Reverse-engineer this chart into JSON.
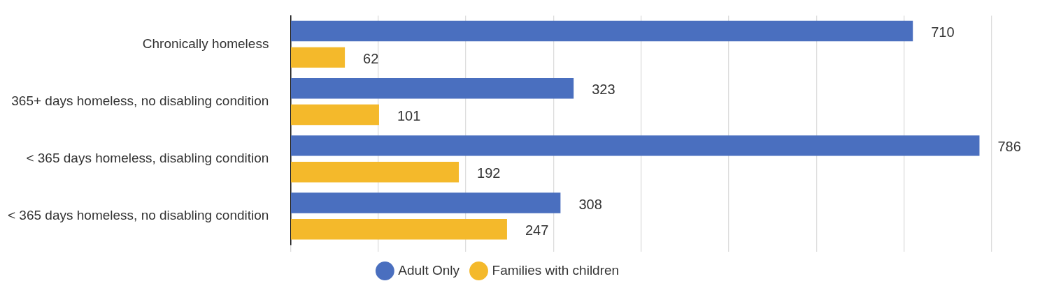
{
  "chart_data": {
    "type": "bar",
    "orientation": "horizontal",
    "categories": [
      "Chronically homeless",
      "365+ days homeless, no disabling condition",
      "< 365 days homeless, disabling condition",
      "< 365 days homeless, no disabling condition"
    ],
    "series": [
      {
        "name": "Adult Only",
        "color": "#4a6fbf",
        "values": [
          710,
          323,
          786,
          308
        ]
      },
      {
        "name": "Families with children",
        "color": "#f4b92b",
        "values": [
          62,
          101,
          192,
          247
        ]
      }
    ],
    "xlim": [
      0,
      800
    ],
    "xticks": [
      {
        "value": 0,
        "label": null
      },
      {
        "value": 100,
        "label": null
      },
      {
        "value": 200,
        "label": null
      },
      {
        "value": 300,
        "label": null
      },
      {
        "value": 400,
        "label": null
      },
      {
        "value": 500,
        "label": null
      },
      {
        "value": 600,
        "label": null
      },
      {
        "value": 700,
        "label": null
      },
      {
        "value": 800,
        "label": null
      }
    ],
    "tick_labels": "y",
    "grid": "x",
    "legend": "bottom",
    "marker": "circle",
    "data_labels": true
  }
}
